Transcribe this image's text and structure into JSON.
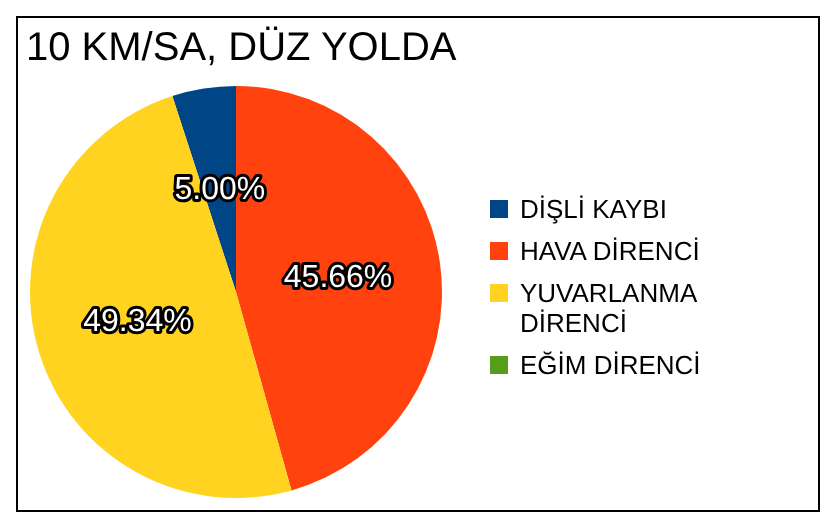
{
  "chart_data": {
    "type": "pie",
    "title": "10 KM/SA, DÜZ YOLDA",
    "categories": [
      "DİŞLİ KAYBI",
      "HAVA DİRENCİ",
      "YUVARLANMA DİRENCİ",
      "EĞİM DİRENCİ"
    ],
    "values": [
      5.0,
      45.66,
      49.34,
      0
    ],
    "colors": [
      "#004586",
      "#ff420e",
      "#ffd320",
      "#579d1c"
    ],
    "value_labels": [
      "5.00%",
      "45.66%",
      "49.34%",
      null
    ],
    "legend": "right"
  }
}
